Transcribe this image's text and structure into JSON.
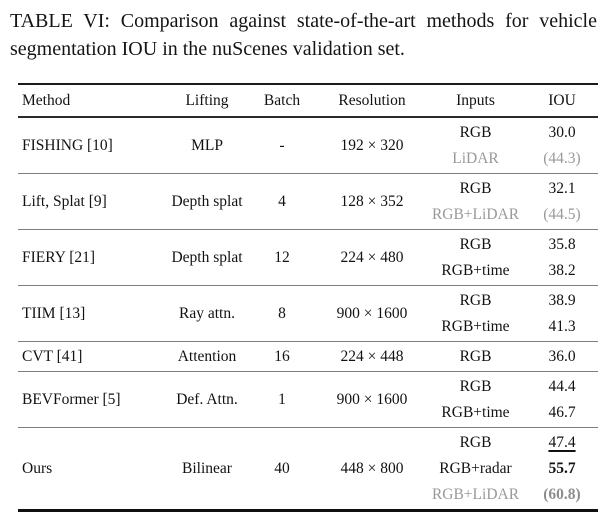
{
  "caption": "TABLE VI: Comparison against state-of-the-art methods for vehicle segmentation IOU in the nuScenes validation set.",
  "table": {
    "columns": [
      "Method",
      "Lifting",
      "Batch",
      "Resolution",
      "Inputs",
      "IOU"
    ],
    "rows": [
      {
        "method": "FISHING [10]",
        "lifting": "MLP",
        "batch": "-",
        "resolution": "192 × 320",
        "entries": [
          {
            "input": "RGB",
            "iou": "30.0",
            "style": "normal"
          },
          {
            "input": "LiDAR",
            "iou": "(44.3)",
            "style": "muted"
          }
        ]
      },
      {
        "method": "Lift, Splat [9]",
        "lifting": "Depth splat",
        "batch": "4",
        "resolution": "128 × 352",
        "entries": [
          {
            "input": "RGB",
            "iou": "32.1",
            "style": "normal"
          },
          {
            "input": "RGB+LiDAR",
            "iou": "(44.5)",
            "style": "muted"
          }
        ]
      },
      {
        "method": "FIERY [21]",
        "lifting": "Depth splat",
        "batch": "12",
        "resolution": "224 × 480",
        "entries": [
          {
            "input": "RGB",
            "iou": "35.8",
            "style": "normal"
          },
          {
            "input": "RGB+time",
            "iou": "38.2",
            "style": "normal"
          }
        ]
      },
      {
        "method": "TIIM [13]",
        "lifting": "Ray attn.",
        "batch": "8",
        "resolution": "900 × 1600",
        "entries": [
          {
            "input": "RGB",
            "iou": "38.9",
            "style": "normal"
          },
          {
            "input": "RGB+time",
            "iou": "41.3",
            "style": "normal"
          }
        ]
      },
      {
        "method": "CVT [41]",
        "lifting": "Attention",
        "batch": "16",
        "resolution": "224 × 448",
        "entries": [
          {
            "input": "RGB",
            "iou": "36.0",
            "style": "normal"
          }
        ]
      },
      {
        "method": "BEVFormer [5]",
        "lifting": "Def. Attn.",
        "batch": "1",
        "resolution": "900 × 1600",
        "entries": [
          {
            "input": "RGB",
            "iou": "44.4",
            "style": "normal"
          },
          {
            "input": "RGB+time",
            "iou": "46.7",
            "style": "normal"
          }
        ]
      },
      {
        "method": "Ours",
        "lifting": "Bilinear",
        "batch": "40",
        "resolution": "448 × 800",
        "entries": [
          {
            "input": "RGB",
            "iou": "47.4",
            "style": "underline"
          },
          {
            "input": "RGB+radar",
            "iou": "55.7",
            "style": "bold"
          },
          {
            "input": "RGB+LiDAR",
            "iou": "(60.8)",
            "style": "bold-muted"
          }
        ]
      }
    ]
  },
  "colors": {
    "text": "#121212",
    "muted": "#999999",
    "rule": "#7d7d7d"
  }
}
